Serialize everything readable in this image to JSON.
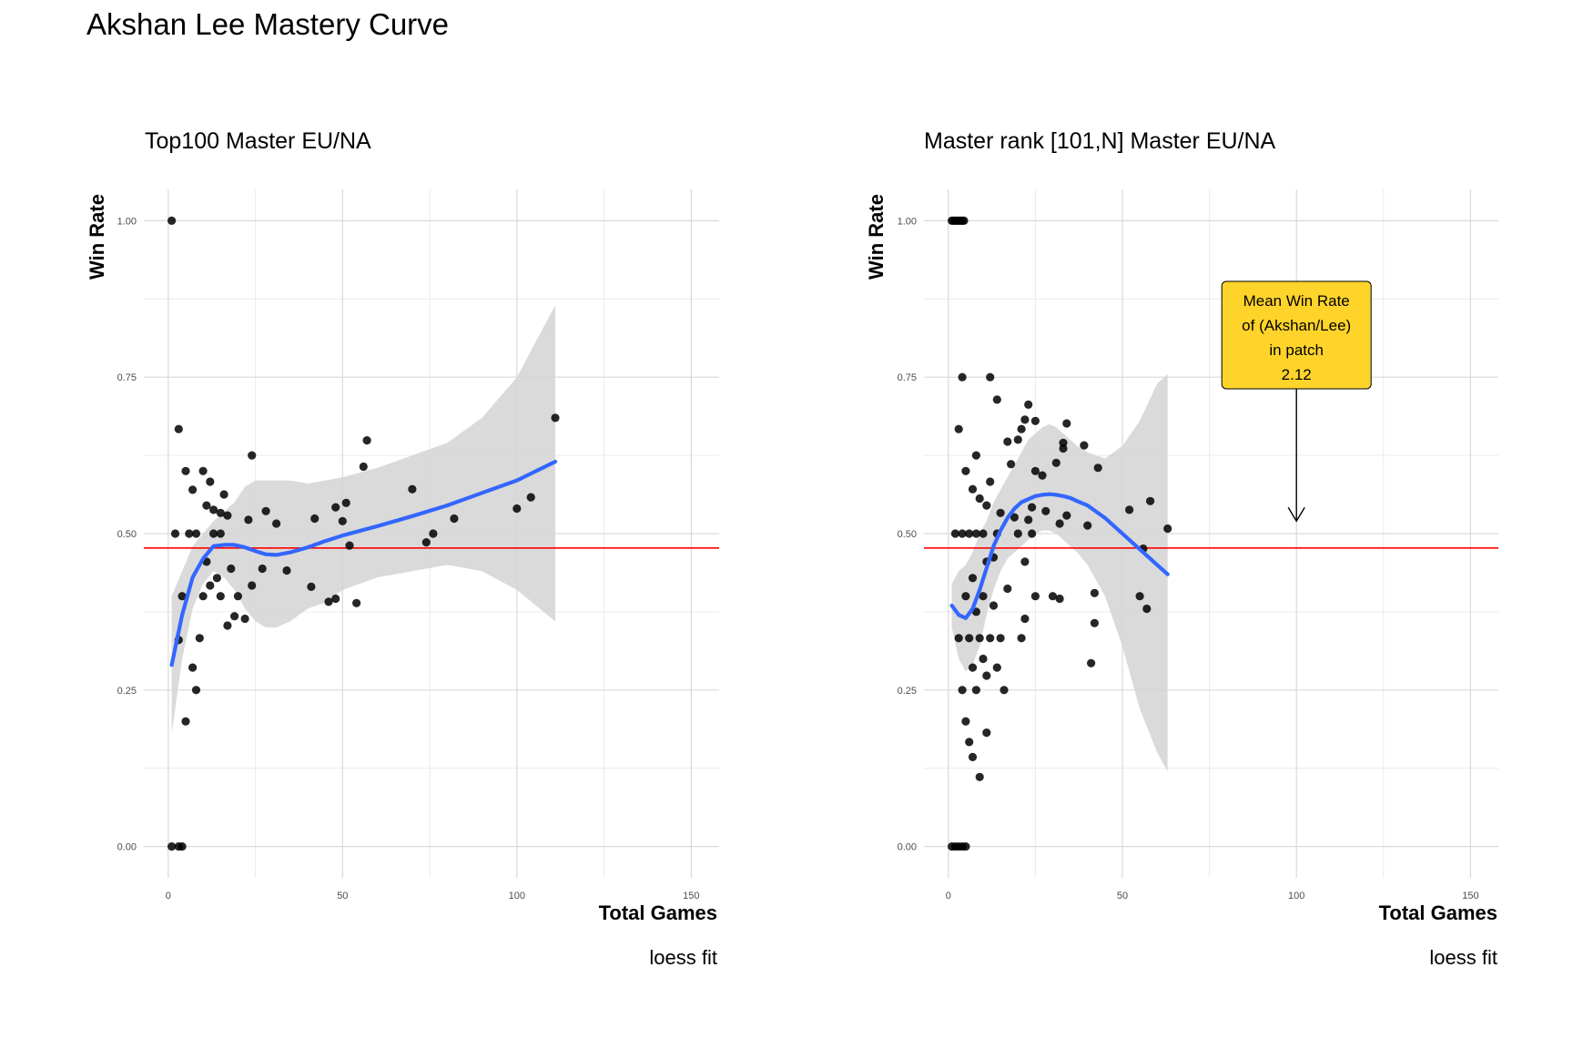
{
  "page": {
    "title": "Akshan Lee Mastery Curve"
  },
  "colors": {
    "points": "#000000",
    "smooth": "#3366FF",
    "ribbon": "#D3D3D3",
    "mean_line": "#FF0000",
    "grid": "#D9D9D9",
    "callout_fill": "#FFD42A"
  },
  "chart_data": [
    {
      "type": "scatter",
      "title": "Top100 Master EU/NA",
      "xlabel": "Total Games",
      "ylabel": "Win Rate",
      "caption": "loess fit",
      "xlim": [
        -7,
        158
      ],
      "ylim": [
        -0.05,
        1.05
      ],
      "x_ticks": [
        0,
        50,
        100,
        150
      ],
      "y_ticks": [
        0,
        0.25,
        0.5,
        0.75,
        1
      ],
      "x_tick_labels": [
        "0",
        "50",
        "100",
        "150"
      ],
      "y_tick_labels": [
        "0.00",
        "0.25",
        "0.50",
        "0.75",
        "1.00"
      ],
      "grid": true,
      "mean_win_rate": 0.477,
      "points": [
        [
          1,
          1.0
        ],
        [
          1,
          0
        ],
        [
          3,
          0
        ],
        [
          4,
          0
        ],
        [
          2,
          0.5
        ],
        [
          3,
          0.33
        ],
        [
          3,
          0.667
        ],
        [
          4,
          0.4
        ],
        [
          5,
          0.6
        ],
        [
          5,
          0.2
        ],
        [
          6,
          0.5
        ],
        [
          7,
          0.57
        ],
        [
          7,
          0.286
        ],
        [
          8,
          0.25
        ],
        [
          8,
          0.5
        ],
        [
          9,
          0.333
        ],
        [
          10,
          0.6
        ],
        [
          10,
          0.4
        ],
        [
          11,
          0.545
        ],
        [
          11,
          0.455
        ],
        [
          12,
          0.583
        ],
        [
          12,
          0.417
        ],
        [
          13,
          0.538
        ],
        [
          13,
          0.5
        ],
        [
          14,
          0.429
        ],
        [
          15,
          0.533
        ],
        [
          15,
          0.4
        ],
        [
          15,
          0.5
        ],
        [
          16,
          0.5625
        ],
        [
          17,
          0.529
        ],
        [
          17,
          0.353
        ],
        [
          18,
          0.444
        ],
        [
          19,
          0.368
        ],
        [
          20,
          0.4
        ],
        [
          22,
          0.364
        ],
        [
          23,
          0.522
        ],
        [
          24,
          0.625
        ],
        [
          24,
          0.417
        ],
        [
          27,
          0.444
        ],
        [
          28,
          0.536
        ],
        [
          31,
          0.516
        ],
        [
          34,
          0.441
        ],
        [
          41,
          0.415
        ],
        [
          42,
          0.524
        ],
        [
          46,
          0.391
        ],
        [
          48,
          0.542
        ],
        [
          48,
          0.396
        ],
        [
          50,
          0.52
        ],
        [
          51,
          0.549
        ],
        [
          52,
          0.481
        ],
        [
          54,
          0.389
        ],
        [
          56,
          0.607
        ],
        [
          57,
          0.649
        ],
        [
          70,
          0.571
        ],
        [
          74,
          0.486
        ],
        [
          76,
          0.5
        ],
        [
          82,
          0.524
        ],
        [
          100,
          0.54
        ],
        [
          104,
          0.558
        ],
        [
          111,
          0.685
        ]
      ],
      "smooth": {
        "x": [
          1,
          4,
          7,
          10,
          13,
          16,
          19,
          22,
          25,
          28,
          31,
          35,
          40,
          45,
          50,
          60,
          70,
          80,
          90,
          100,
          111
        ],
        "y": [
          0.29,
          0.37,
          0.43,
          0.46,
          0.48,
          0.482,
          0.482,
          0.478,
          0.472,
          0.467,
          0.466,
          0.47,
          0.478,
          0.488,
          0.497,
          0.512,
          0.528,
          0.545,
          0.565,
          0.585,
          0.615
        ],
        "lower": [
          0.18,
          0.3,
          0.38,
          0.42,
          0.44,
          0.43,
          0.41,
          0.38,
          0.36,
          0.35,
          0.35,
          0.36,
          0.38,
          0.39,
          0.41,
          0.43,
          0.44,
          0.45,
          0.44,
          0.41,
          0.36
        ],
        "upper": [
          0.4,
          0.44,
          0.48,
          0.5,
          0.52,
          0.535,
          0.55,
          0.575,
          0.585,
          0.585,
          0.585,
          0.585,
          0.58,
          0.585,
          0.59,
          0.605,
          0.625,
          0.645,
          0.685,
          0.75,
          0.865
        ]
      }
    },
    {
      "type": "scatter",
      "title": "Master rank [101,N] Master EU/NA",
      "xlabel": "Total Games",
      "ylabel": "Win Rate",
      "caption": "loess fit",
      "xlim": [
        -7,
        158
      ],
      "ylim": [
        -0.05,
        1.05
      ],
      "x_ticks": [
        0,
        50,
        100,
        150
      ],
      "y_ticks": [
        0,
        0.25,
        0.5,
        0.75,
        1
      ],
      "x_tick_labels": [
        "0",
        "50",
        "100",
        "150"
      ],
      "y_tick_labels": [
        "0.00",
        "0.25",
        "0.50",
        "0.75",
        "1.00"
      ],
      "grid": true,
      "mean_win_rate": 0.477,
      "annotation": {
        "text_lines": [
          "Mean Win Rate",
          "of (Akshan/Lee)",
          "in patch",
          "2.12"
        ],
        "x": 100,
        "arrow_from_y": 0.73,
        "arrow_to_y": 0.52
      },
      "points": [
        [
          1,
          1.0
        ],
        [
          1.5,
          1.0
        ],
        [
          2,
          1.0
        ],
        [
          2.5,
          1.0
        ],
        [
          3,
          1.0
        ],
        [
          3.5,
          1.0
        ],
        [
          4,
          1.0
        ],
        [
          4.5,
          1.0
        ],
        [
          1,
          0
        ],
        [
          2,
          0
        ],
        [
          3,
          0
        ],
        [
          4,
          0
        ],
        [
          5,
          0
        ],
        [
          2,
          0.5
        ],
        [
          3,
          0.333
        ],
        [
          3,
          0.667
        ],
        [
          4,
          0.25
        ],
        [
          4,
          0.75
        ],
        [
          4,
          0.5
        ],
        [
          5,
          0.2
        ],
        [
          5,
          0.6
        ],
        [
          5,
          0.4
        ],
        [
          6,
          0.333
        ],
        [
          6,
          0.5
        ],
        [
          6,
          0.167
        ],
        [
          7,
          0.429
        ],
        [
          7,
          0.571
        ],
        [
          7,
          0.143
        ],
        [
          7,
          0.286
        ],
        [
          8,
          0.25
        ],
        [
          8,
          0.625
        ],
        [
          8,
          0.5
        ],
        [
          8,
          0.375
        ],
        [
          9,
          0.556
        ],
        [
          9,
          0.111
        ],
        [
          9,
          0.333
        ],
        [
          10,
          0.3
        ],
        [
          10,
          0.4
        ],
        [
          10,
          0.5
        ],
        [
          11,
          0.545
        ],
        [
          11,
          0.273
        ],
        [
          11,
          0.182
        ],
        [
          11,
          0.455
        ],
        [
          12,
          0.583
        ],
        [
          12,
          0.75
        ],
        [
          12,
          0.333
        ],
        [
          13,
          0.385
        ],
        [
          13,
          0.462
        ],
        [
          14,
          0.714
        ],
        [
          14,
          0.5
        ],
        [
          14,
          0.286
        ],
        [
          15,
          0.533
        ],
        [
          15,
          0.333
        ],
        [
          16,
          0.25
        ],
        [
          17,
          0.647
        ],
        [
          17,
          0.412
        ],
        [
          18,
          0.611
        ],
        [
          19,
          0.526
        ],
        [
          20,
          0.5
        ],
        [
          20,
          0.65
        ],
        [
          21,
          0.667
        ],
        [
          21,
          0.333
        ],
        [
          22,
          0.682
        ],
        [
          22,
          0.455
        ],
        [
          22,
          0.364
        ],
        [
          23,
          0.522
        ],
        [
          23,
          0.706
        ],
        [
          24,
          0.5
        ],
        [
          24,
          0.542
        ],
        [
          25,
          0.68
        ],
        [
          25,
          0.4
        ],
        [
          25,
          0.6
        ],
        [
          27,
          0.593
        ],
        [
          28,
          0.536
        ],
        [
          30,
          0.4
        ],
        [
          31,
          0.613
        ],
        [
          32,
          0.396
        ],
        [
          32,
          0.516
        ],
        [
          33,
          0.636
        ],
        [
          33,
          0.645
        ],
        [
          34,
          0.676
        ],
        [
          34,
          0.529
        ],
        [
          39,
          0.641
        ],
        [
          40,
          0.513
        ],
        [
          41,
          0.293
        ],
        [
          42,
          0.405
        ],
        [
          42,
          0.357
        ],
        [
          43,
          0.605
        ],
        [
          52,
          0.538
        ],
        [
          55,
          0.4
        ],
        [
          56,
          0.476
        ],
        [
          57,
          0.38
        ],
        [
          58,
          0.552
        ],
        [
          63,
          0.508
        ]
      ],
      "smooth": {
        "x": [
          1,
          3,
          5,
          7,
          9,
          11,
          13,
          15,
          17,
          19,
          21,
          23,
          25,
          27,
          29,
          31,
          33,
          35,
          37,
          40,
          45,
          50,
          55,
          60,
          63
        ],
        "y": [
          0.385,
          0.37,
          0.365,
          0.38,
          0.41,
          0.445,
          0.48,
          0.505,
          0.525,
          0.54,
          0.55,
          0.555,
          0.56,
          0.562,
          0.563,
          0.562,
          0.56,
          0.557,
          0.552,
          0.545,
          0.525,
          0.5,
          0.475,
          0.45,
          0.435
        ],
        "lower": [
          0.35,
          0.3,
          0.28,
          0.29,
          0.32,
          0.37,
          0.41,
          0.44,
          0.46,
          0.47,
          0.48,
          0.49,
          0.5,
          0.505,
          0.505,
          0.5,
          0.49,
          0.48,
          0.47,
          0.45,
          0.4,
          0.32,
          0.22,
          0.15,
          0.12
        ],
        "upper": [
          0.42,
          0.44,
          0.45,
          0.47,
          0.5,
          0.52,
          0.55,
          0.57,
          0.59,
          0.61,
          0.63,
          0.65,
          0.66,
          0.67,
          0.675,
          0.67,
          0.66,
          0.65,
          0.64,
          0.63,
          0.62,
          0.64,
          0.68,
          0.74,
          0.755
        ]
      }
    }
  ]
}
